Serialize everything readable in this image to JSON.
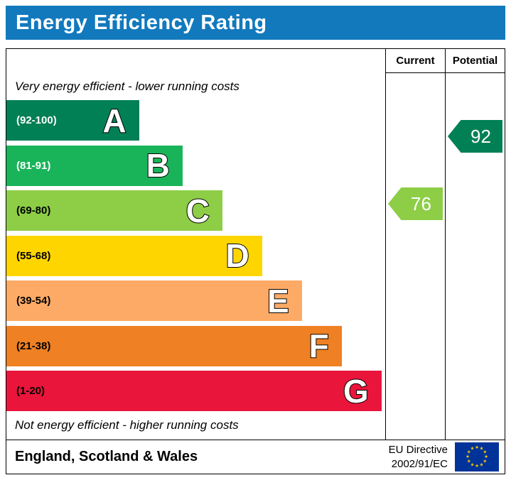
{
  "title": "Energy Efficiency Rating",
  "title_bg": "#1279bd",
  "header": {
    "current_label": "Current",
    "potential_label": "Potential"
  },
  "captions": {
    "top": "Very energy efficient - lower running costs",
    "bottom": "Not energy efficient - higher running costs"
  },
  "bands": [
    {
      "letter": "A",
      "range_label": "(92-100)",
      "color": "#008054",
      "text_color": "#ffffff",
      "width_pct": 35
    },
    {
      "letter": "B",
      "range_label": "(81-91)",
      "color": "#19b459",
      "text_color": "#ffffff",
      "width_pct": 46.5
    },
    {
      "letter": "C",
      "range_label": "(69-80)",
      "color": "#8dce46",
      "text_color": "#000000",
      "width_pct": 57
    },
    {
      "letter": "D",
      "range_label": "(55-68)",
      "color": "#ffd500",
      "text_color": "#000000",
      "width_pct": 67.5
    },
    {
      "letter": "E",
      "range_label": "(39-54)",
      "color": "#fcaa65",
      "text_color": "#000000",
      "width_pct": 78
    },
    {
      "letter": "F",
      "range_label": "(21-38)",
      "color": "#ef8023",
      "text_color": "#000000",
      "width_pct": 88.5
    },
    {
      "letter": "G",
      "range_label": "(1-20)",
      "color": "#e9153b",
      "text_color": "#000000",
      "width_pct": 99
    }
  ],
  "ratings": {
    "current": {
      "value": "76",
      "color": "#8dce46",
      "band": "C"
    },
    "potential": {
      "value": "92",
      "color": "#008054",
      "band": "A"
    }
  },
  "footer": {
    "region": "England, Scotland & Wales",
    "directive_line1": "EU Directive",
    "directive_line2": "2002/91/EC",
    "flag": {
      "bg": "#003399",
      "stars": "#ffcc00"
    }
  },
  "icons": {
    "eu_star": "★"
  },
  "chart_data": {
    "type": "bar",
    "title": "Energy Efficiency Rating",
    "categories": [
      "A",
      "B",
      "C",
      "D",
      "E",
      "F",
      "G"
    ],
    "band_ranges": [
      [
        92,
        100
      ],
      [
        81,
        91
      ],
      [
        69,
        80
      ],
      [
        55,
        68
      ],
      [
        39,
        54
      ],
      [
        21,
        38
      ],
      [
        1,
        20
      ]
    ],
    "band_colors": [
      "#008054",
      "#19b459",
      "#8dce46",
      "#ffd500",
      "#fcaa65",
      "#ef8023",
      "#e9153b"
    ],
    "current_rating": 76,
    "current_band": "C",
    "potential_rating": 92,
    "potential_band": "A",
    "region": "England, Scotland & Wales",
    "directive": "EU Directive 2002/91/EC",
    "legend_position": "none",
    "grid": false
  }
}
